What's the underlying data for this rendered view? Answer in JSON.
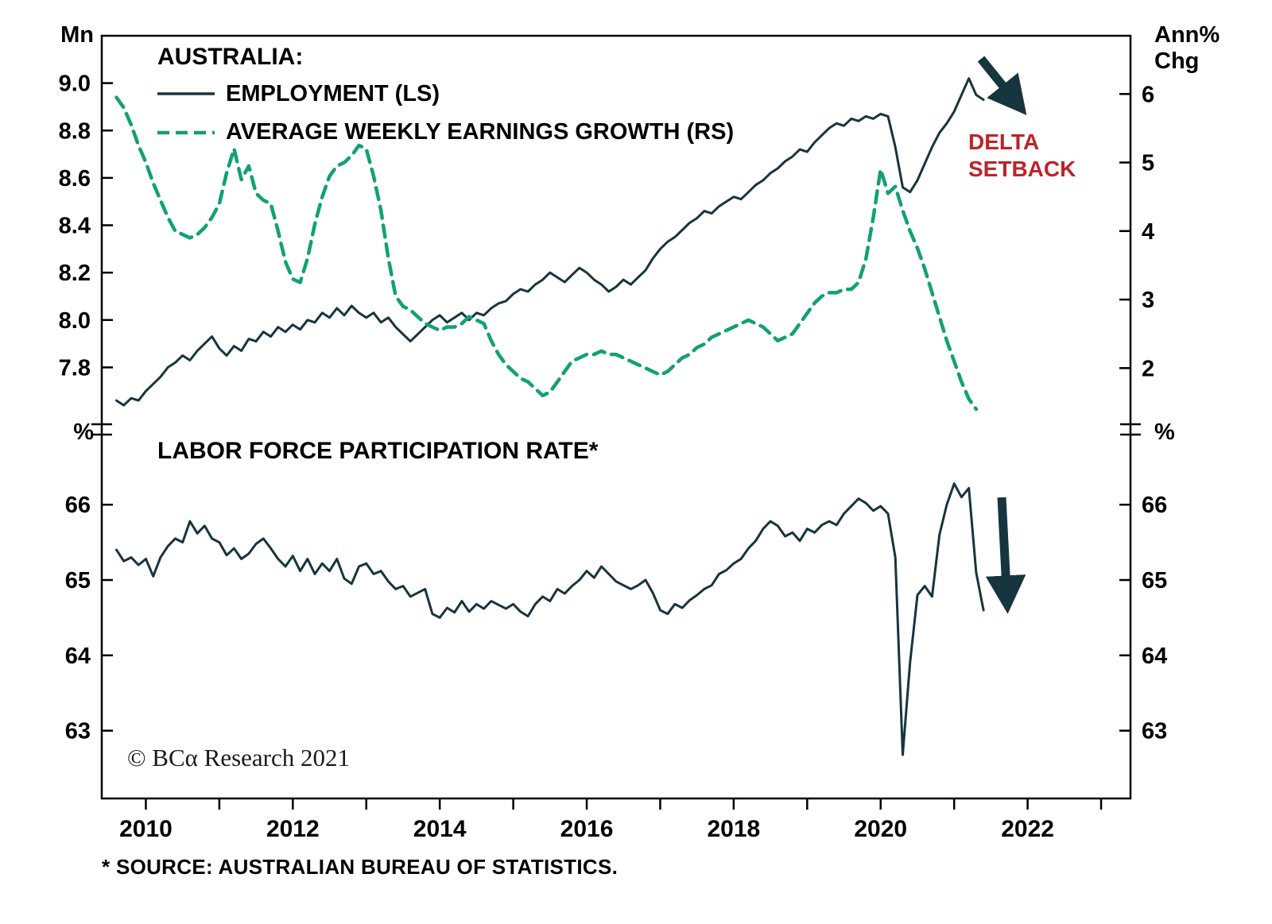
{
  "colors": {
    "line_dark": "#16353e",
    "line_green": "#12a173",
    "annotation_red": "#c0222a",
    "axis": "#000000",
    "background": "#ffffff"
  },
  "footnote": "* SOURCE: AUSTRALIAN BUREAU OF STATISTICS.",
  "x_axis": {
    "range": [
      2009.4,
      2023.4
    ],
    "tick_years": [
      2010,
      2011,
      2012,
      2013,
      2014,
      2015,
      2016,
      2017,
      2018,
      2019,
      2020,
      2021,
      2022,
      2023
    ],
    "labels": [
      "2010",
      "2012",
      "2014",
      "2016",
      "2018",
      "2020",
      "2022"
    ]
  },
  "chart_data": [
    {
      "type": "line",
      "panel": "top",
      "title": "AUSTRALIA:",
      "legend": [
        {
          "label": "EMPLOYMENT (LS)",
          "style": "solid",
          "color_key": "line_dark"
        },
        {
          "label": "AVERAGE WEEKLY EARNINGS GROWTH (RS)",
          "style": "dashed",
          "color_key": "line_green"
        }
      ],
      "annotation": {
        "line1": "DELTA",
        "line2": "SETBACK",
        "color_key": "annotation_red"
      },
      "left_axis": {
        "unit": "Mn",
        "ticks": [
          "9.0",
          "8.8",
          "8.6",
          "8.4",
          "8.2",
          "8.0",
          "7.8"
        ],
        "range": [
          7.58,
          9.2
        ]
      },
      "right_axis": {
        "unit": "Ann% Chg",
        "ticks": [
          "6",
          "5",
          "4",
          "3",
          "2"
        ],
        "range": [
          1.25,
          6.85
        ]
      },
      "series": [
        {
          "name": "EMPLOYMENT (LS)",
          "axis": "left",
          "line_style": "solid",
          "color_key": "line_dark",
          "x_start": 2009.6,
          "x_step": 0.1,
          "y": [
            7.66,
            7.64,
            7.67,
            7.66,
            7.7,
            7.73,
            7.76,
            7.8,
            7.82,
            7.85,
            7.83,
            7.87,
            7.9,
            7.93,
            7.88,
            7.85,
            7.89,
            7.87,
            7.92,
            7.91,
            7.95,
            7.93,
            7.97,
            7.95,
            7.98,
            7.96,
            8.0,
            7.99,
            8.03,
            8.01,
            8.05,
            8.02,
            8.06,
            8.03,
            8.01,
            8.03,
            7.99,
            8.01,
            7.97,
            7.94,
            7.91,
            7.94,
            7.97,
            8.0,
            8.02,
            7.99,
            8.01,
            8.03,
            8.0,
            8.03,
            8.02,
            8.05,
            8.07,
            8.08,
            8.11,
            8.13,
            8.12,
            8.15,
            8.17,
            8.2,
            8.18,
            8.16,
            8.19,
            8.22,
            8.2,
            8.17,
            8.15,
            8.12,
            8.14,
            8.17,
            8.15,
            8.18,
            8.21,
            8.26,
            8.3,
            8.33,
            8.35,
            8.38,
            8.41,
            8.43,
            8.46,
            8.45,
            8.48,
            8.5,
            8.52,
            8.51,
            8.54,
            8.57,
            8.59,
            8.62,
            8.64,
            8.67,
            8.69,
            8.72,
            8.71,
            8.75,
            8.78,
            8.81,
            8.83,
            8.82,
            8.85,
            8.84,
            8.86,
            8.85,
            8.87,
            8.86,
            8.73,
            8.56,
            8.54,
            8.59,
            8.66,
            8.73,
            8.79,
            8.83,
            8.88,
            8.95,
            9.02,
            8.95,
            8.93
          ]
        },
        {
          "name": "AVERAGE WEEKLY EARNINGS GROWTH (RS)",
          "axis": "right",
          "line_style": "dashed",
          "color_key": "line_green",
          "x_start": 2009.6,
          "x_step": 0.1,
          "y": [
            5.95,
            5.8,
            5.55,
            5.25,
            5.0,
            4.7,
            4.45,
            4.2,
            4.0,
            3.95,
            3.9,
            3.95,
            4.05,
            4.2,
            4.4,
            4.85,
            5.2,
            4.75,
            4.95,
            4.55,
            4.45,
            4.4,
            4.0,
            3.55,
            3.3,
            3.25,
            3.6,
            4.1,
            4.5,
            4.8,
            4.95,
            5.0,
            5.1,
            5.25,
            5.2,
            4.8,
            4.3,
            3.6,
            3.05,
            2.9,
            2.85,
            2.75,
            2.65,
            2.6,
            2.55,
            2.6,
            2.6,
            2.65,
            2.75,
            2.7,
            2.65,
            2.4,
            2.2,
            2.05,
            1.95,
            1.85,
            1.8,
            1.7,
            1.6,
            1.65,
            1.8,
            1.95,
            2.1,
            2.15,
            2.2,
            2.2,
            2.25,
            2.2,
            2.2,
            2.15,
            2.1,
            2.05,
            2.0,
            1.95,
            1.9,
            1.95,
            2.05,
            2.15,
            2.2,
            2.3,
            2.35,
            2.45,
            2.5,
            2.55,
            2.6,
            2.65,
            2.7,
            2.65,
            2.6,
            2.5,
            2.4,
            2.45,
            2.5,
            2.65,
            2.8,
            2.95,
            3.05,
            3.1,
            3.1,
            3.15,
            3.15,
            3.25,
            3.6,
            4.2,
            4.9,
            4.55,
            4.65,
            4.3,
            4.0,
            3.75,
            3.45,
            3.1,
            2.75,
            2.4,
            2.1,
            1.8,
            1.55,
            1.4
          ]
        }
      ]
    },
    {
      "type": "line",
      "panel": "bottom",
      "title": "LABOR FORCE PARTICIPATION RATE*",
      "watermark": "© BCα Research 2021",
      "left_axis": {
        "unit": "%",
        "ticks": [
          "66",
          "65",
          "64",
          "63"
        ],
        "range": [
          62.1,
          66.92
        ]
      },
      "right_axis": {
        "unit": "%",
        "ticks": [
          "66",
          "65",
          "64",
          "63"
        ],
        "range": [
          62.1,
          66.92
        ]
      },
      "series": [
        {
          "name": "LABOR FORCE PARTICIPATION RATE",
          "axis": "left",
          "line_style": "solid",
          "color_key": "line_dark",
          "x_start": 2009.6,
          "x_step": 0.1,
          "y": [
            65.4,
            65.25,
            65.3,
            65.2,
            65.28,
            65.05,
            65.3,
            65.45,
            65.55,
            65.5,
            65.78,
            65.62,
            65.72,
            65.55,
            65.5,
            65.33,
            65.42,
            65.28,
            65.35,
            65.48,
            65.55,
            65.42,
            65.28,
            65.18,
            65.32,
            65.12,
            65.28,
            65.08,
            65.22,
            65.12,
            65.28,
            65.02,
            64.95,
            65.18,
            65.22,
            65.08,
            65.12,
            64.98,
            64.88,
            64.92,
            64.78,
            64.83,
            64.88,
            64.55,
            64.5,
            64.63,
            64.57,
            64.72,
            64.58,
            64.68,
            64.62,
            64.72,
            64.67,
            64.62,
            64.68,
            64.58,
            64.52,
            64.68,
            64.78,
            64.72,
            64.88,
            64.82,
            64.92,
            65.0,
            65.12,
            65.03,
            65.18,
            65.08,
            64.98,
            64.93,
            64.88,
            64.93,
            65.0,
            64.83,
            64.6,
            64.55,
            64.68,
            64.63,
            64.73,
            64.8,
            64.88,
            64.93,
            65.08,
            65.13,
            65.22,
            65.28,
            65.42,
            65.52,
            65.68,
            65.78,
            65.72,
            65.58,
            65.63,
            65.52,
            65.68,
            65.63,
            65.73,
            65.78,
            65.73,
            65.88,
            65.98,
            66.08,
            66.02,
            65.92,
            65.98,
            65.88,
            65.3,
            62.68,
            63.9,
            64.8,
            64.92,
            64.78,
            65.6,
            66.0,
            66.28,
            66.1,
            66.22,
            65.1,
            64.6
          ]
        }
      ]
    }
  ]
}
